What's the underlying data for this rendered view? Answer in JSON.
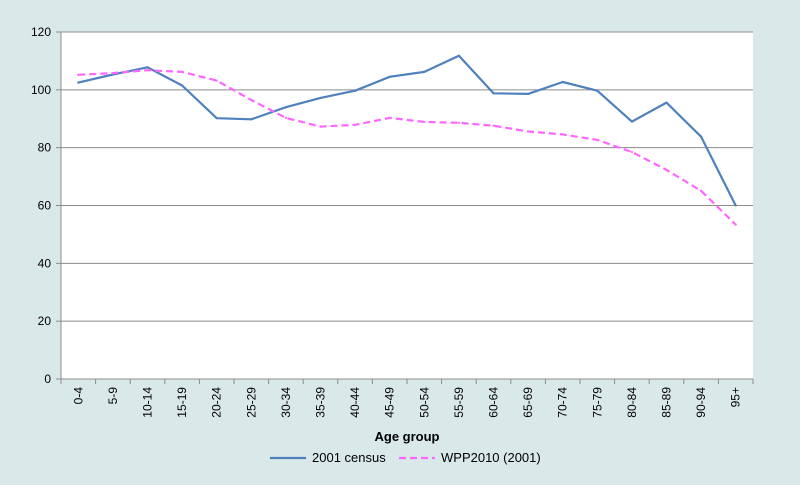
{
  "chart_data": {
    "type": "line",
    "title": "",
    "xlabel": "Age group",
    "ylabel": "",
    "ylim": [
      0,
      120
    ],
    "yticks": [
      0,
      20,
      40,
      60,
      80,
      100,
      120
    ],
    "grid": "horizontal",
    "legend_position": "bottom",
    "categories": [
      "0-4",
      "5-9",
      "10-14",
      "15-19",
      "20-24",
      "25-29",
      "30-34",
      "35-39",
      "40-44",
      "45-49",
      "50-54",
      "55-59",
      "60-64",
      "65-69",
      "70-74",
      "75-79",
      "80-84",
      "85-89",
      "90-94",
      "95+"
    ],
    "series": [
      {
        "name": "2001 census",
        "color": "#4f81bd",
        "dash": "solid",
        "values": [
          102.5,
          105.3,
          107.8,
          101.5,
          90.2,
          89.8,
          94.0,
          97.2,
          99.7,
          104.5,
          106.2,
          111.8,
          98.8,
          98.6,
          102.7,
          99.7,
          89.0,
          95.6,
          83.8,
          60.0
        ]
      },
      {
        "name": "WPP2010 (2001)",
        "color": "#ff66ff",
        "dash": "dashed",
        "values": [
          105.2,
          105.8,
          106.8,
          106.2,
          103.2,
          96.5,
          90.3,
          87.3,
          87.9,
          90.3,
          88.9,
          88.6,
          87.6,
          85.6,
          84.6,
          82.7,
          78.5,
          72.3,
          65.1,
          53.4
        ]
      }
    ]
  }
}
